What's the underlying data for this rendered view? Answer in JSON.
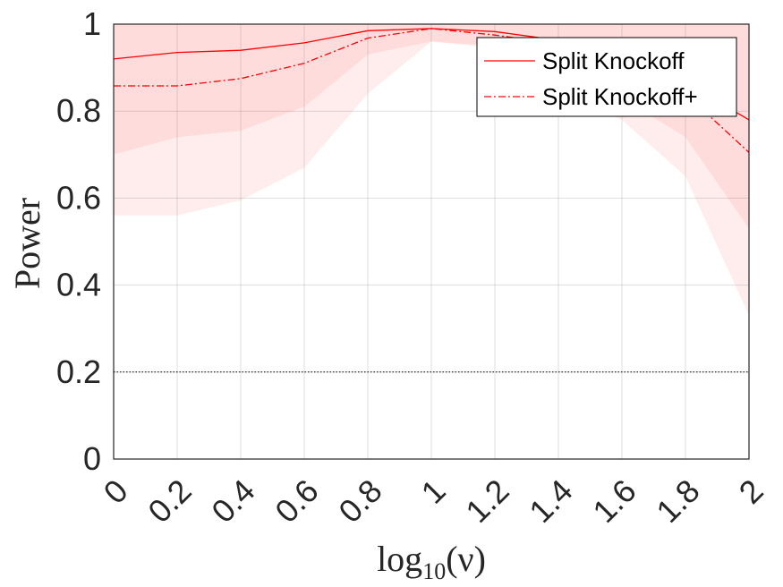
{
  "chart_data": {
    "type": "line",
    "xlabel": "log10(ν)",
    "xlabel_base": "log",
    "xlabel_sub": "10",
    "xlabel_arg": "(ν)",
    "ylabel": "Power",
    "xlim": [
      0,
      2
    ],
    "ylim": [
      0,
      1
    ],
    "x": [
      0,
      0.2,
      0.4,
      0.6,
      0.8,
      1.0,
      1.2,
      1.4,
      1.6,
      1.8,
      2.0
    ],
    "x_tick_labels": [
      "0",
      "0.2",
      "0.4",
      "0.6",
      "0.8",
      "1",
      "1.2",
      "1.4",
      "1.6",
      "1.8",
      "2"
    ],
    "y_ticks": [
      0,
      0.2,
      0.4,
      0.6,
      0.8,
      1
    ],
    "y_tick_labels": [
      "0",
      "0.2",
      "0.4",
      "0.6",
      "0.8",
      "1"
    ],
    "grid": true,
    "legend_position": "top-right",
    "reference_line": {
      "y": 0.2,
      "style": "dotted",
      "color": "#000000"
    },
    "series": [
      {
        "name": "Split Knockoff",
        "style": "solid",
        "color": "#ff0000",
        "values": [
          0.92,
          0.935,
          0.94,
          0.957,
          0.985,
          0.99,
          0.983,
          0.963,
          0.935,
          0.865,
          0.78
        ],
        "band_upper": [
          1.0,
          1.0,
          1.0,
          1.0,
          1.0,
          1.0,
          1.0,
          1.0,
          1.0,
          1.0,
          1.0
        ],
        "band_lower": [
          0.7,
          0.74,
          0.755,
          0.81,
          0.93,
          0.96,
          0.95,
          0.89,
          0.83,
          0.74,
          0.53
        ]
      },
      {
        "name": "Split Knockoff+",
        "style": "dashdot",
        "color": "#ff0000",
        "values": [
          0.858,
          0.858,
          0.875,
          0.91,
          0.968,
          0.99,
          0.975,
          0.955,
          0.91,
          0.84,
          0.705
        ],
        "band_upper": [
          1.0,
          1.0,
          1.0,
          1.0,
          1.0,
          1.0,
          1.0,
          1.0,
          1.0,
          1.0,
          1.0
        ],
        "band_lower": [
          0.56,
          0.56,
          0.595,
          0.67,
          0.84,
          0.96,
          0.945,
          0.84,
          0.78,
          0.65,
          0.33
        ]
      }
    ],
    "band_color": "#ff0000"
  }
}
